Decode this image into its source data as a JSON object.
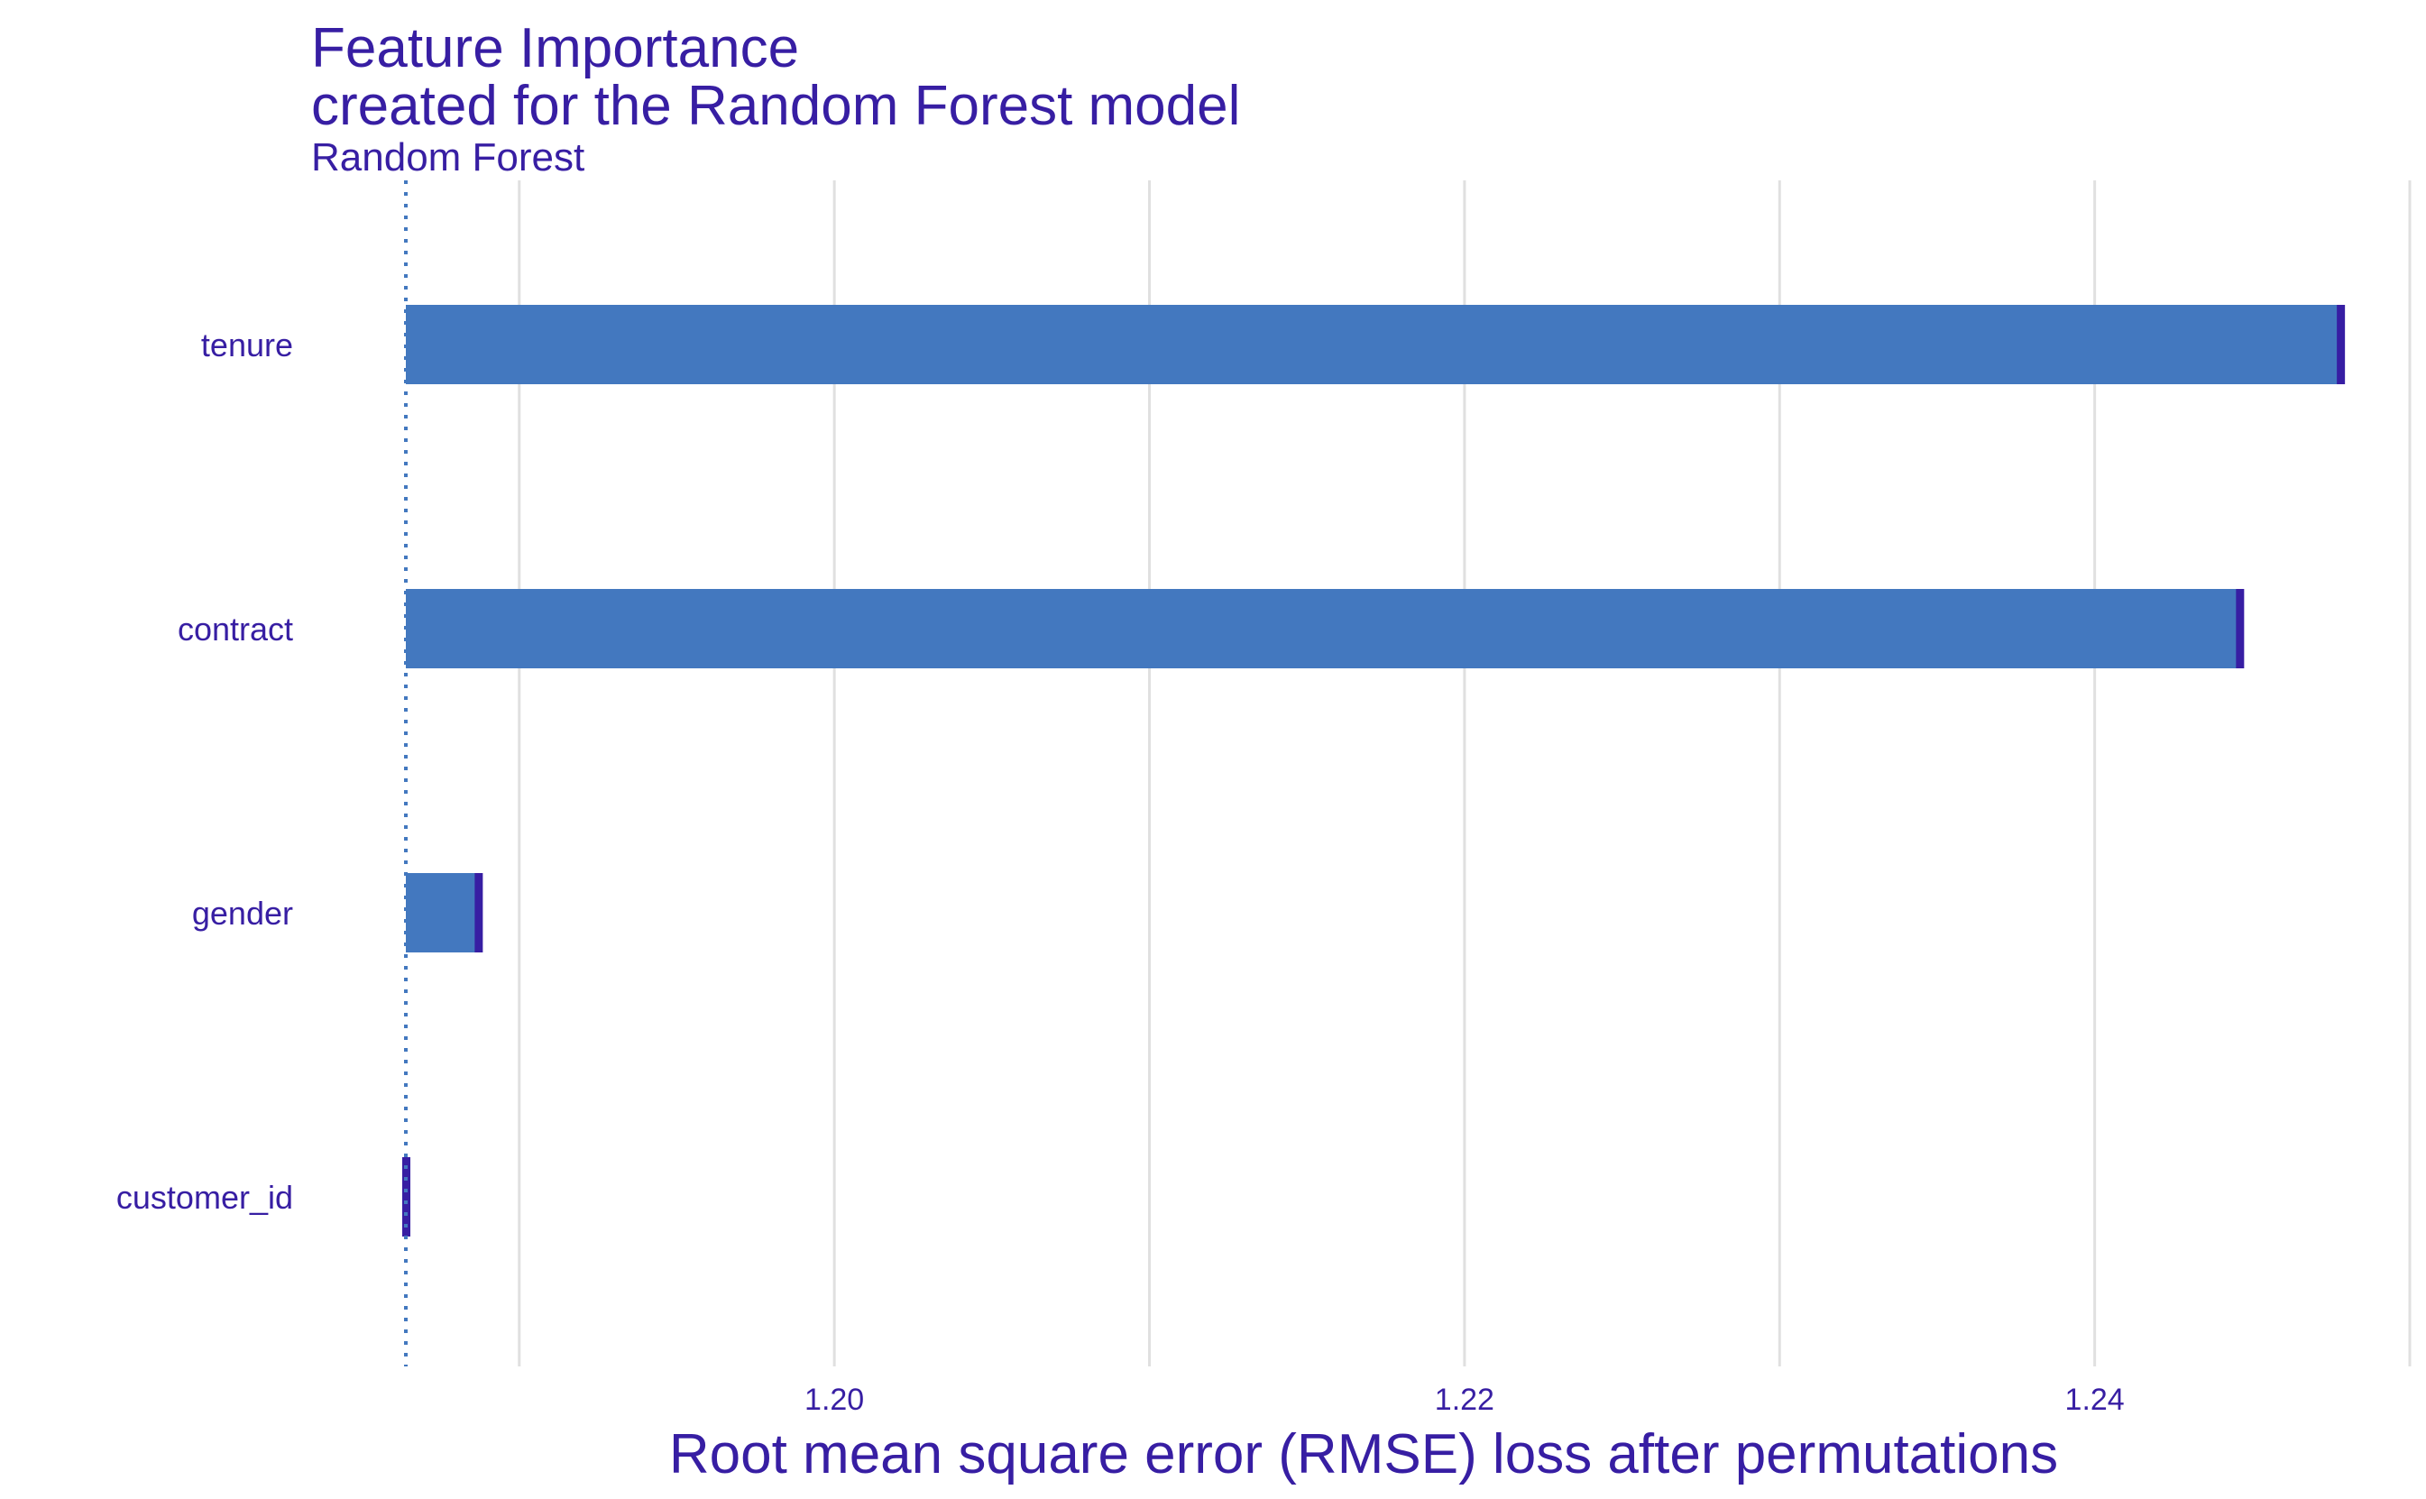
{
  "title": "Feature Importance",
  "subtitle": "created for the Random Forest model",
  "model_label": "Random Forest",
  "colors": {
    "text": "#371ea3",
    "bar": "#4378bf",
    "bar_end": "#371ea3",
    "baseline": "#4378bf",
    "grid": "#e0e0e0"
  },
  "chart_data": {
    "type": "bar",
    "orientation": "horizontal",
    "categories": [
      "tenure",
      "contract",
      "gender",
      "customer_id"
    ],
    "values": [
      1.2478,
      1.2446,
      1.1887,
      1.1864
    ],
    "baseline": 1.1864,
    "xlabel": "Root mean square error (RMSE) loss after permutations",
    "ylabel": "",
    "xlim": [
      1.1864,
      1.25
    ],
    "xticks": [
      1.2,
      1.22,
      1.24
    ],
    "xtick_labels": [
      "1.20",
      "1.22",
      "1.24"
    ],
    "minor_gridlines": [
      1.19,
      1.21,
      1.23,
      1.25
    ],
    "grid": true,
    "legend": "none"
  }
}
